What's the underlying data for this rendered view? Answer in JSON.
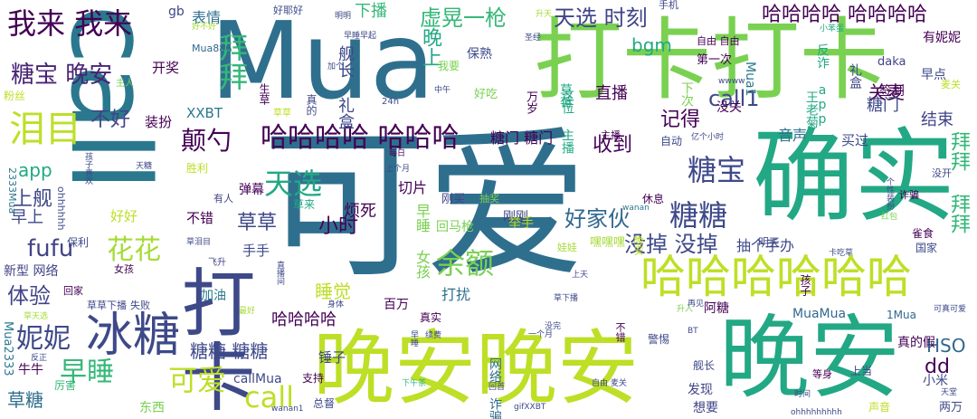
{
  "words": [
    {
      "text": "Mua"
    },
    {
      "text": "call"
    },
    {
      "text": "可爱"
    },
    {
      "text": "打卡打卡"
    },
    {
      "text": "确实"
    },
    {
      "text": "晚安晚安"
    },
    {
      "text": "晚安"
    },
    {
      "text": "打卡"
    },
    {
      "text": "冰糖"
    },
    {
      "text": "哈哈哈哈哈哈"
    },
    {
      "text": "我来 我来"
    },
    {
      "text": "虚晃一枪"
    },
    {
      "text": "天选 时刻"
    },
    {
      "text": "哈哈哈哈 哈哈哈哈"
    },
    {
      "text": "糖宝 晚安"
    },
    {
      "text": "拜拜"
    },
    {
      "text": "泪目"
    },
    {
      "text": "哈哈哈哈 哈哈哈"
    },
    {
      "text": "颠勺"
    },
    {
      "text": "糖宝"
    },
    {
      "text": "糖糖"
    },
    {
      "text": "天选"
    },
    {
      "text": "余额"
    },
    {
      "text": "早睡"
    },
    {
      "text": "可爱"
    },
    {
      "text": "call"
    },
    {
      "text": "妮妮"
    },
    {
      "text": "花花"
    },
    {
      "text": "没掉 没掉"
    },
    {
      "text": "拜拜 拜拜"
    },
    {
      "text": "fufu"
    },
    {
      "text": "app"
    },
    {
      "text": "上舰"
    },
    {
      "text": "体验"
    },
    {
      "text": "草糖"
    },
    {
      "text": "糖糖 糖糖"
    },
    {
      "text": "草草"
    },
    {
      "text": "好家伙"
    },
    {
      "text": "小时"
    },
    {
      "text": "dd"
    },
    {
      "text": "HSO"
    },
    {
      "text": "call1"
    },
    {
      "text": "bgm"
    },
    {
      "text": "关麦"
    },
    {
      "text": "记得"
    },
    {
      "text": "收到"
    },
    {
      "text": "不好"
    },
    {
      "text": "早上"
    },
    {
      "text": "睡觉"
    },
    {
      "text": "哈哈哈哈"
    },
    {
      "text": "下播"
    },
    {
      "text": "表情"
    },
    {
      "text": "晚上"
    },
    {
      "text": "舰长 礼盒"
    },
    {
      "text": "开奖"
    },
    {
      "text": "装扮"
    },
    {
      "text": "XXBT"
    },
    {
      "text": "糖门 糖门"
    },
    {
      "text": "糖门"
    },
    {
      "text": "结束"
    },
    {
      "text": "直播"
    },
    {
      "text": "音声"
    },
    {
      "text": "买过"
    },
    {
      "text": "签到"
    },
    {
      "text": "早点"
    },
    {
      "text": "有妮妮"
    },
    {
      "text": "daka"
    },
    {
      "text": "礼盒"
    },
    {
      "text": "没关"
    },
    {
      "text": "草莓"
    },
    {
      "text": "Mua1"
    },
    {
      "text": "弹幕"
    },
    {
      "text": "切片"
    },
    {
      "text": "烦死"
    },
    {
      "text": "早睡 女孩"
    },
    {
      "text": "回马枪"
    },
    {
      "text": "刚刚"
    },
    {
      "text": "手手"
    },
    {
      "text": "抽个手办"
    },
    {
      "text": "不错"
    },
    {
      "text": "好好"
    },
    {
      "text": "打扰"
    },
    {
      "text": "MuaMua"
    },
    {
      "text": "锤子"
    },
    {
      "text": "小米"
    },
    {
      "text": "网络 诈骗"
    },
    {
      "text": "发现"
    },
    {
      "text": "真的假"
    },
    {
      "text": "牛牛"
    },
    {
      "text": "Mua2333"
    },
    {
      "text": "新型 网络"
    },
    {
      "text": "callMua"
    },
    {
      "text": "加油"
    },
    {
      "text": "支持"
    },
    {
      "text": "总督"
    },
    {
      "text": "厉害"
    },
    {
      "text": "东西"
    },
    {
      "text": "想要"
    },
    {
      "text": "两万"
    },
    {
      "text": "声音"
    },
    {
      "text": "舰长"
    },
    {
      "text": "阿糖"
    },
    {
      "text": "1Mua"
    },
    {
      "text": "百万"
    },
    {
      "text": "真实"
    },
    {
      "text": "孩子"
    },
    {
      "text": "国家"
    },
    {
      "text": "警惕"
    },
    {
      "text": "举手"
    },
    {
      "text": "嘿嘿嘿"
    },
    {
      "text": "娃娃"
    },
    {
      "text": "草来"
    },
    {
      "text": "gb"
    },
    {
      "text": "手机"
    },
    {
      "text": "好耶好"
    },
    {
      "text": "明明"
    },
    {
      "text": "升天"
    },
    {
      "text": "好不好"
    },
    {
      "text": "Mua886"
    },
    {
      "text": "早睡早起"
    },
    {
      "text": "保熟"
    },
    {
      "text": "第一次"
    },
    {
      "text": "wwww"
    },
    {
      "text": "主人"
    },
    {
      "text": "粉丝"
    },
    {
      "text": "草草"
    },
    {
      "text": "真的"
    },
    {
      "text": "生草"
    },
    {
      "text": "2333Mua"
    },
    {
      "text": "ohhhhhh"
    },
    {
      "text": "保利"
    },
    {
      "text": "有人"
    },
    {
      "text": "胜利"
    },
    {
      "text": "草草下播"
    },
    {
      "text": "失败"
    },
    {
      "text": "回家"
    },
    {
      "text": "女孩"
    },
    {
      "text": "飞升"
    },
    {
      "text": "刚买"
    },
    {
      "text": "抽奖"
    },
    {
      "text": "休息"
    },
    {
      "text": "自动"
    },
    {
      "text": "好吃"
    },
    {
      "text": "我要"
    },
    {
      "text": "亿个小时"
    },
    {
      "text": "雀食"
    },
    {
      "text": "明天"
    },
    {
      "text": "卡吃草"
    },
    {
      "text": "个性装扮"
    },
    {
      "text": "诈骗"
    },
    {
      "text": "红包"
    },
    {
      "text": "wanan"
    },
    {
      "text": "上当"
    },
    {
      "text": "gifXXBT"
    },
    {
      "text": "wanan1"
    },
    {
      "text": "ohhhhhhhhh"
    },
    {
      "text": "一个月"
    },
    {
      "text": "续费"
    },
    {
      "text": "没完"
    },
    {
      "text": "再见"
    },
    {
      "text": "身体"
    },
    {
      "text": "可真可爱"
    },
    {
      "text": "时间"
    },
    {
      "text": "天堂"
    },
    {
      "text": "等身"
    },
    {
      "text": "不错"
    },
    {
      "text": "晚安"
    },
    {
      "text": "早睡"
    },
    {
      "text": "万岁"
    },
    {
      "text": "这位 主播"
    },
    {
      "text": "反诈 app"
    },
    {
      "text": "王老菊"
    },
    {
      "text": "24h"
    },
    {
      "text": "中午"
    },
    {
      "text": "上个月"
    },
    {
      "text": "每日"
    },
    {
      "text": "草泪目"
    },
    {
      "text": "上天"
    },
    {
      "text": "草下播"
    },
    {
      "text": "下午茶"
    },
    {
      "text": "回首"
    },
    {
      "text": "没开"
    },
    {
      "text": "麦关"
    },
    {
      "text": "自由 自由"
    },
    {
      "text": "自由 麦关"
    },
    {
      "text": "加个"
    },
    {
      "text": "主播"
    },
    {
      "text": "圣经"
    },
    {
      "text": "小苯蛋"
    },
    {
      "text": "BT"
    },
    {
      "text": "升入"
    },
    {
      "text": "孩子喜欢"
    },
    {
      "text": "天糖"
    },
    {
      "text": "直播间"
    },
    {
      "text": "最好"
    },
    {
      "text": "草天选"
    },
    {
      "text": "反正"
    },
    {
      "text": "下次"
    }
  ]
}
